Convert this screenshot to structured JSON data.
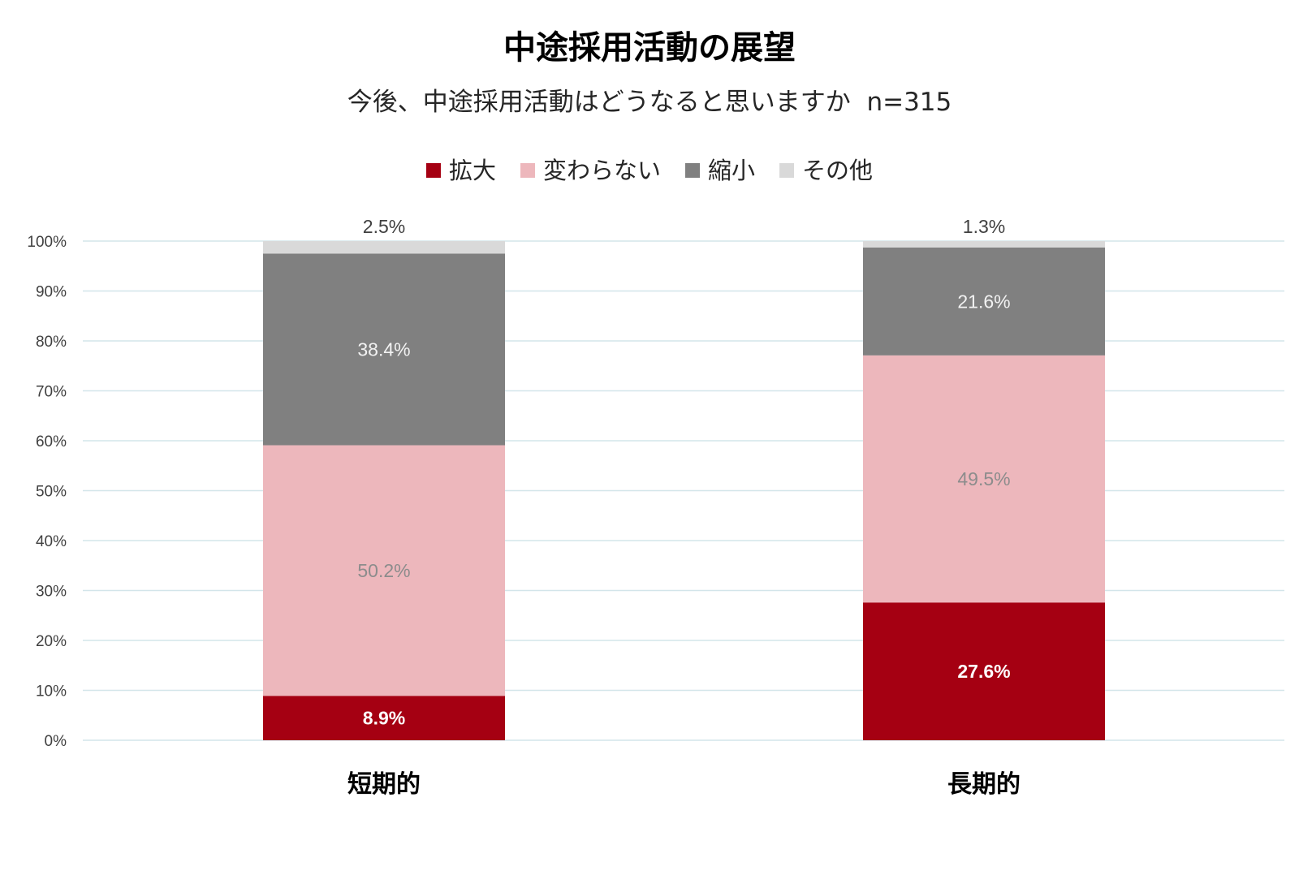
{
  "chart_data": {
    "type": "bar",
    "stacked": true,
    "title": "中途採用活動の展望",
    "subtitle": "今後、中途採用活動はどうなると思いますか  n=315",
    "categories": [
      "短期的",
      "長期的"
    ],
    "series": [
      {
        "name": "拡大",
        "color": "#a50012",
        "values": [
          8.9,
          27.6
        ],
        "labels": [
          "8.9%",
          "27.6%"
        ],
        "label_color": "#ffffff",
        "label_bold": true
      },
      {
        "name": "変わらない",
        "color": "#edb7bc",
        "values": [
          50.2,
          49.5
        ],
        "labels": [
          "50.2%",
          "49.5%"
        ],
        "label_color": "#8c8c8c",
        "label_bold": false
      },
      {
        "name": "縮小",
        "color": "#808080",
        "values": [
          38.4,
          21.6
        ],
        "labels": [
          "38.4%",
          "21.6%"
        ],
        "label_color": "#f2f2f2",
        "label_bold": false
      },
      {
        "name": "その他",
        "color": "#d9d9d9",
        "values": [
          2.5,
          1.3
        ],
        "labels": [
          "2.5%",
          "1.3%"
        ],
        "label_color": "#404040",
        "label_bold": false,
        "label_above": true
      }
    ],
    "ylim": [
      0,
      100
    ],
    "yticks": [
      "0%",
      "10%",
      "20%",
      "30%",
      "40%",
      "50%",
      "60%",
      "70%",
      "80%",
      "90%",
      "100%"
    ],
    "grid": true,
    "gridline_color": "#d3e5ea",
    "legend_position": "top"
  }
}
